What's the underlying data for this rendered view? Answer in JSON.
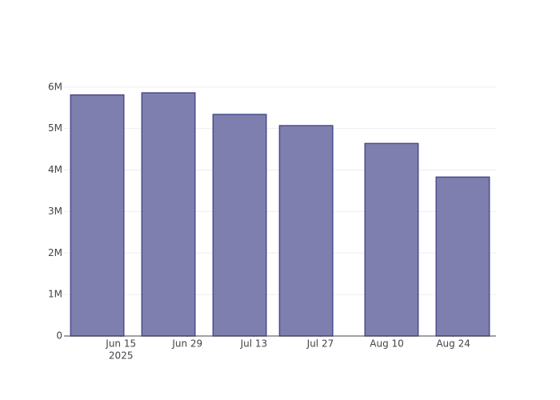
{
  "chart_data": {
    "type": "bar",
    "x": [
      "2025-06-10",
      "2025-06-25",
      "2025-07-10",
      "2025-07-24",
      "2025-08-11",
      "2025-08-26"
    ],
    "values": [
      5810000,
      5860000,
      5340000,
      5070000,
      4640000,
      3830000
    ],
    "bar_width_days": 11.2,
    "color": "#7f7faf",
    "edge_color": "#4b4b8b",
    "xlim": [
      "2025-06-03",
      "2025-09-02"
    ],
    "xticks": [
      {
        "value": "2025-06-15",
        "label": "Jun 15",
        "sublabel": "2025"
      },
      {
        "value": "2025-06-29",
        "label": "Jun 29"
      },
      {
        "value": "2025-07-13",
        "label": "Jul 13"
      },
      {
        "value": "2025-07-27",
        "label": "Jul 27"
      },
      {
        "value": "2025-08-10",
        "label": "Aug 10"
      },
      {
        "value": "2025-08-24",
        "label": "Aug 24"
      }
    ],
    "ylim": [
      0,
      6170000
    ],
    "yticks": [
      0,
      {
        "value": 1000000,
        "label": "1M"
      },
      {
        "value": 2000000,
        "label": "2M"
      },
      {
        "value": 3000000,
        "label": "3M"
      },
      {
        "value": 4000000,
        "label": "4M"
      },
      {
        "value": 5000000,
        "label": "5M"
      },
      {
        "value": 6000000,
        "label": "6M"
      }
    ],
    "grid": true
  }
}
